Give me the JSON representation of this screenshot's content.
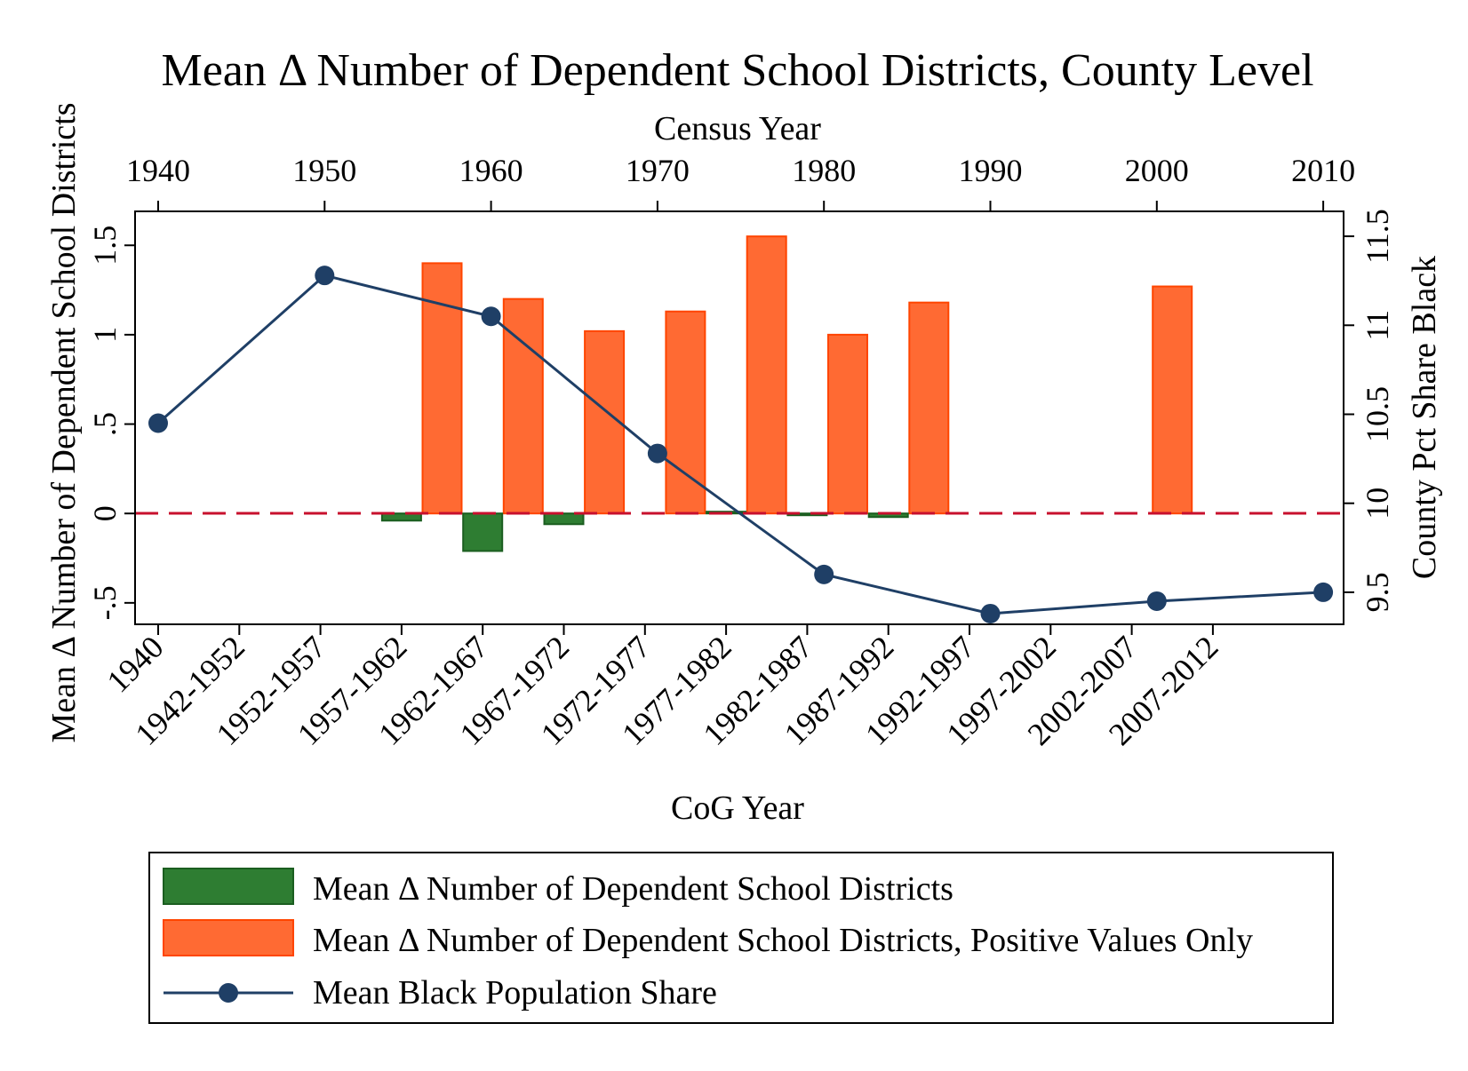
{
  "chart_data": {
    "type": "bar",
    "title": "Mean Δ Number of Dependent School Districts, County Level",
    "top_axis": {
      "label": "Census Year",
      "ticks": [
        "1940",
        "1950",
        "1960",
        "1970",
        "1980",
        "1990",
        "2000",
        "2010"
      ]
    },
    "bottom_axis": {
      "label": "CoG Year",
      "categories": [
        "1940",
        "1942-1952",
        "1952-1957",
        "1957-1962",
        "1962-1967",
        "1967-1972",
        "1972-1977",
        "1977-1982",
        "1982-1987",
        "1987-1992",
        "1992-1997",
        "1997-2002",
        "2002-2007",
        "2007-2012"
      ]
    },
    "left_axis": {
      "label": "Mean Δ Number of Dependent School Districts",
      "ticks": [
        "-.5",
        "0",
        ".5",
        "1",
        "1.5"
      ],
      "tick_values": [
        -0.5,
        0,
        0.5,
        1,
        1.5
      ],
      "ylim": [
        -0.62,
        1.69
      ]
    },
    "right_axis": {
      "label": "County Pct Share Black",
      "ticks": [
        "9.5",
        "10",
        "10.5",
        "11",
        "11.5"
      ],
      "tick_values": [
        9.5,
        10,
        10.5,
        11,
        11.5
      ],
      "ylim": [
        9.32,
        11.64
      ]
    },
    "series": [
      {
        "name": "Mean Δ Number of Dependent School Districts",
        "type": "bar",
        "color": "#2e7d32",
        "categories": [
          "1957-1962",
          "1962-1967",
          "1967-1972",
          "1977-1982",
          "1982-1987",
          "1987-1992"
        ],
        "values": [
          -0.04,
          -0.21,
          -0.06,
          0.01,
          -0.01,
          -0.02
        ]
      },
      {
        "name": "Mean Δ Number of Dependent School Districts, Positive Values Only",
        "type": "bar",
        "color": "#ff6a33",
        "categories": [
          "1957-1962",
          "1962-1967",
          "1967-1972",
          "1972-1977",
          "1977-1982",
          "1982-1987",
          "1987-1992",
          "2002-2007"
        ],
        "values": [
          1.4,
          1.2,
          1.02,
          1.13,
          1.55,
          1.0,
          1.18,
          1.27
        ]
      },
      {
        "name": "Mean Black Population Share",
        "type": "line",
        "color": "#1f3f66",
        "x": [
          1940,
          1950,
          1960,
          1970,
          1980,
          1990,
          2000,
          2010
        ],
        "y": [
          10.45,
          11.28,
          11.05,
          10.28,
          9.6,
          9.38,
          9.45,
          9.5
        ]
      }
    ],
    "reference_line": {
      "y": 0,
      "style": "dashed",
      "color": "#c8102e"
    },
    "grid": false,
    "legend": "bottom"
  }
}
